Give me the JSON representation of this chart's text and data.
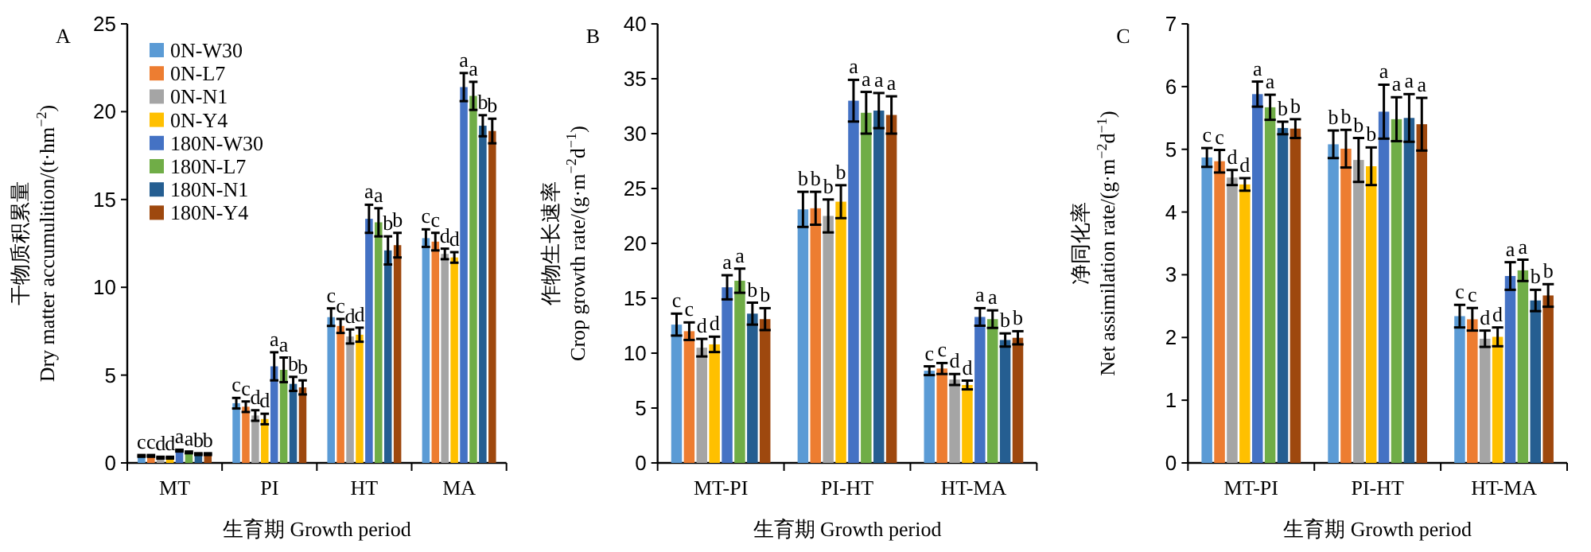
{
  "chart_data": [
    {
      "type": "bar",
      "title": "A",
      "xlabel": "生育期 Growth period",
      "ylabel": "干物质积累量\nDry matter accumulition/(t·hm$^{−2}$)",
      "categories": [
        "MT",
        "PI",
        "HT",
        "MA"
      ],
      "ylim": [
        0,
        25
      ],
      "yticks": [
        0,
        5,
        10,
        15,
        20,
        25
      ],
      "legend": "top left",
      "series": [
        {
          "name": "0N-W30",
          "color": "#5b9bd5",
          "values": [
            0.4,
            3.4,
            8.3,
            12.8
          ],
          "errors": [
            0.05,
            0.3,
            0.5,
            0.5
          ],
          "value_labels": [
            "c",
            "c",
            "c",
            "c"
          ]
        },
        {
          "name": "0N-L7",
          "color": "#ed7d31",
          "values": [
            0.4,
            3.2,
            7.8,
            12.6
          ],
          "errors": [
            0.05,
            0.3,
            0.4,
            0.5
          ],
          "value_labels": [
            "c",
            "c",
            "c",
            "c"
          ]
        },
        {
          "name": "0N-N1",
          "color": "#a5a5a5",
          "values": [
            0.3,
            2.7,
            7.2,
            11.9
          ],
          "errors": [
            0.05,
            0.3,
            0.4,
            0.3
          ],
          "value_labels": [
            "d",
            "d",
            "d",
            "d"
          ]
        },
        {
          "name": "0N-Y4",
          "color": "#ffc000",
          "values": [
            0.3,
            2.5,
            7.3,
            11.7
          ],
          "errors": [
            0.05,
            0.3,
            0.4,
            0.3
          ],
          "value_labels": [
            "d",
            "d",
            "d",
            "d"
          ]
        },
        {
          "name": "180N-W30",
          "color": "#4472c4",
          "values": [
            0.7,
            5.5,
            13.9,
            21.4
          ],
          "errors": [
            0.05,
            0.8,
            0.8,
            0.8
          ],
          "value_labels": [
            "a",
            "a",
            "a",
            "a"
          ]
        },
        {
          "name": "180N-L7",
          "color": "#70ad47",
          "values": [
            0.6,
            5.3,
            13.7,
            20.9
          ],
          "errors": [
            0.05,
            0.7,
            0.8,
            0.8
          ],
          "value_labels": [
            "a",
            "a",
            "a",
            "a"
          ]
        },
        {
          "name": "180N-N1",
          "color": "#255e91",
          "values": [
            0.5,
            4.5,
            12.1,
            19.2
          ],
          "errors": [
            0.05,
            0.4,
            0.8,
            0.6
          ],
          "value_labels": [
            "b",
            "b",
            "b",
            "b"
          ]
        },
        {
          "name": "180N-Y4",
          "color": "#9e480e",
          "values": [
            0.5,
            4.3,
            12.4,
            18.9
          ],
          "errors": [
            0.05,
            0.4,
            0.7,
            0.7
          ],
          "value_labels": [
            "b",
            "b",
            "b",
            "b"
          ]
        }
      ]
    },
    {
      "type": "bar",
      "title": "B",
      "xlabel": "生育期 Growth period",
      "ylabel": "作物生长速率\nCrop growth rate/(g·m$^{−2}$d$^{−1}$)",
      "categories": [
        "MT-PI",
        "PI-HT",
        "HT-MA"
      ],
      "ylim": [
        0,
        40
      ],
      "yticks": [
        0,
        5,
        10,
        15,
        20,
        25,
        30,
        35,
        40
      ],
      "series": [
        {
          "color": "#5b9bd5",
          "values": [
            12.6,
            23.1,
            8.4
          ],
          "errors": [
            1.0,
            1.6,
            0.4
          ],
          "value_labels": [
            "c",
            "b",
            "c"
          ]
        },
        {
          "color": "#ed7d31",
          "values": [
            12.0,
            23.2,
            8.6
          ],
          "errors": [
            0.8,
            1.5,
            0.5
          ],
          "value_labels": [
            "c",
            "b",
            "c"
          ]
        },
        {
          "color": "#a5a5a5",
          "values": [
            10.5,
            22.5,
            7.6
          ],
          "errors": [
            0.8,
            1.5,
            0.5
          ],
          "value_labels": [
            "d",
            "b",
            "d"
          ]
        },
        {
          "color": "#ffc000",
          "values": [
            10.8,
            23.8,
            7.1
          ],
          "errors": [
            0.7,
            1.5,
            0.4
          ],
          "value_labels": [
            "d",
            "b",
            "d"
          ]
        },
        {
          "color": "#4472c4",
          "values": [
            16.0,
            33.0,
            13.3
          ],
          "errors": [
            1.1,
            1.9,
            0.8
          ],
          "value_labels": [
            "a",
            "a",
            "a"
          ]
        },
        {
          "color": "#70ad47",
          "values": [
            16.6,
            31.9,
            13.1
          ],
          "errors": [
            1.1,
            1.9,
            0.8
          ],
          "value_labels": [
            "a",
            "a",
            "a"
          ]
        },
        {
          "color": "#255e91",
          "values": [
            13.6,
            32.1,
            11.2
          ],
          "errors": [
            1.0,
            1.6,
            0.6
          ],
          "value_labels": [
            "b",
            "a",
            "b"
          ]
        },
        {
          "color": "#9e480e",
          "values": [
            13.1,
            31.7,
            11.4
          ],
          "errors": [
            1.0,
            1.7,
            0.6
          ],
          "value_labels": [
            "b",
            "a",
            "b"
          ]
        }
      ]
    },
    {
      "type": "bar",
      "title": "C",
      "xlabel": "生育期 Growth period",
      "ylabel": "净同化率\nNet assimilation rate/(g·m$^{−2}$d$^{−1}$)",
      "categories": [
        "MT-PI",
        "PI-HT",
        "HT-MA"
      ],
      "ylim": [
        0,
        7
      ],
      "yticks": [
        0,
        1,
        2,
        3,
        4,
        5,
        6,
        7
      ],
      "series": [
        {
          "color": "#5b9bd5",
          "values": [
            4.87,
            5.08,
            2.34
          ],
          "errors": [
            0.15,
            0.22,
            0.18
          ],
          "value_labels": [
            "c",
            "b",
            "c"
          ]
        },
        {
          "color": "#ed7d31",
          "values": [
            4.81,
            5.01,
            2.29
          ],
          "errors": [
            0.18,
            0.3,
            0.18
          ],
          "value_labels": [
            "c",
            "b",
            "c"
          ]
        },
        {
          "color": "#a5a5a5",
          "values": [
            4.55,
            4.83,
            1.98
          ],
          "errors": [
            0.12,
            0.35,
            0.13
          ],
          "value_labels": [
            "d",
            "b",
            "d"
          ]
        },
        {
          "color": "#ffc000",
          "values": [
            4.44,
            4.73,
            2.01
          ],
          "errors": [
            0.1,
            0.3,
            0.15
          ],
          "value_labels": [
            "d",
            "b",
            "d"
          ]
        },
        {
          "color": "#4472c4",
          "values": [
            5.88,
            5.6,
            2.98
          ],
          "errors": [
            0.2,
            0.43,
            0.22
          ],
          "value_labels": [
            "a",
            "a",
            "a"
          ]
        },
        {
          "color": "#70ad47",
          "values": [
            5.67,
            5.48,
            3.07
          ],
          "errors": [
            0.2,
            0.35,
            0.17
          ],
          "value_labels": [
            "a",
            "a",
            "a"
          ]
        },
        {
          "color": "#255e91",
          "values": [
            5.34,
            5.5,
            2.59
          ],
          "errors": [
            0.1,
            0.38,
            0.17
          ],
          "value_labels": [
            "b",
            "a",
            "b"
          ]
        },
        {
          "color": "#9e480e",
          "values": [
            5.33,
            5.4,
            2.67
          ],
          "errors": [
            0.15,
            0.42,
            0.18
          ],
          "value_labels": [
            "b",
            "a",
            "b"
          ]
        }
      ]
    }
  ]
}
